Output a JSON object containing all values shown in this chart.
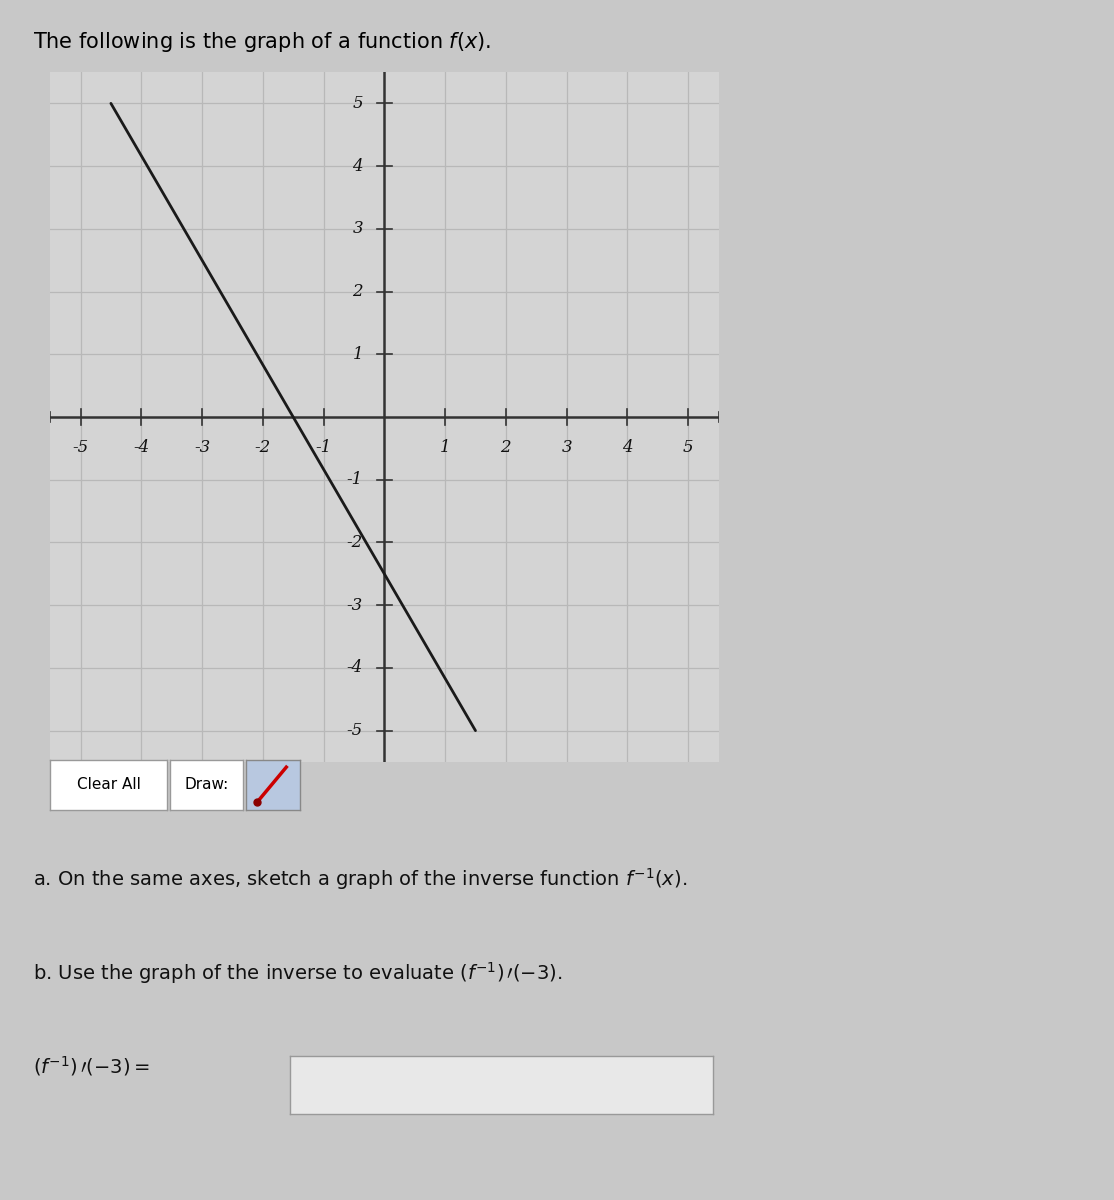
{
  "title": "The following is the graph of a function $f(x)$.",
  "title_fontsize": 15,
  "xlim": [
    -5.5,
    5.5
  ],
  "ylim": [
    -5.5,
    5.5
  ],
  "grid_color": "#b8b8b8",
  "ax_color": "#333333",
  "line_color": "#1a1a1a",
  "line_x": [
    -4.5,
    1.5
  ],
  "line_y": [
    5,
    -5
  ],
  "background_color": "#c8c8c8",
  "plot_bg_color": "#d4d4d4",
  "label_a": "a. On the same axes, sketch a graph of the inverse function $f^{-1}(x)$.",
  "label_b": "b. Use the graph of the inverse to evaluate $(f^{-1})\\,\\prime(-3)$.",
  "label_eq": "$(f^{-1})\\,\\prime(-3) =$",
  "clear_all_text": "Clear All",
  "draw_text": "Draw:",
  "tick_fontsize": 12,
  "text_fontsize": 14,
  "draw_icon_color": "#cc0000",
  "button_bg": "#ffffff",
  "button_border": "#999999",
  "icon_bg": "#b8c8e0"
}
